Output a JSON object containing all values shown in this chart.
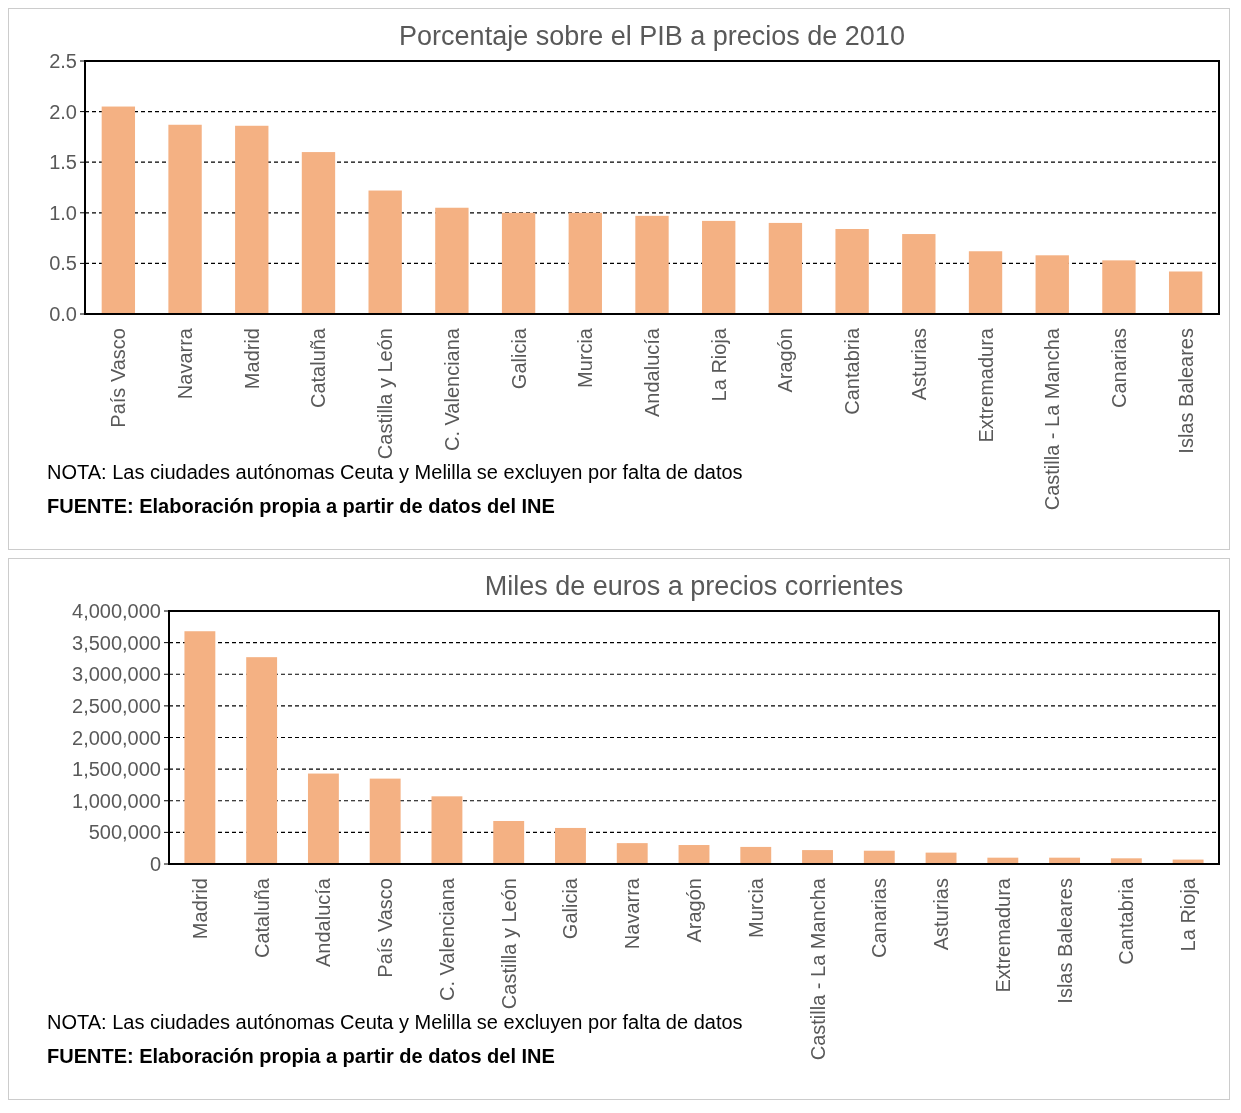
{
  "chart_data": [
    {
      "type": "bar",
      "title": "Porcentaje sobre el PIB a precios de 2010",
      "categories": [
        "País Vasco",
        "Navarra",
        "Madrid",
        "Cataluña",
        "Castilla y León",
        "C. Valenciana",
        "Galicia",
        "Murcia",
        "Andalucía",
        "La Rioja",
        "Aragón",
        "Cantabria",
        "Asturias",
        "Extremadura",
        "Castilla - La Mancha",
        "Canarias",
        "Islas Baleares"
      ],
      "values": [
        2.05,
        1.87,
        1.86,
        1.6,
        1.22,
        1.05,
        1.0,
        1.0,
        0.97,
        0.92,
        0.9,
        0.84,
        0.79,
        0.62,
        0.58,
        0.53,
        0.42
      ],
      "color": "#f4b183",
      "ylim": [
        0,
        2.5
      ],
      "yticks": [
        {
          "value": 0,
          "label": "0.0"
        },
        {
          "value": 0.5,
          "label": "0.5"
        },
        {
          "value": 1,
          "label": "1.0"
        },
        {
          "value": 1.5,
          "label": "1.5"
        },
        {
          "value": 2,
          "label": "2.0"
        },
        {
          "value": 2.5,
          "label": "2.5"
        }
      ],
      "grid": "y",
      "annotations": [
        "NOTA: Las ciudades autónomas  Ceuta y Melilla se excluyen por falta de datos",
        "FUENTE: Elaboración propia a partir de datos del INE"
      ]
    },
    {
      "type": "bar",
      "title": "Miles de euros a precios corrientes",
      "categories": [
        "Madrid",
        "Cataluña",
        "Andalucía",
        "País Vasco",
        "C. Valenciana",
        "Castilla y León",
        "Galicia",
        "Navarra",
        "Aragón",
        "Murcia",
        "Castilla - La Mancha",
        "Canarias",
        "Asturias",
        "Extremadura",
        "Islas Baleares",
        "Cantabria",
        "La Rioja"
      ],
      "values": [
        3680000,
        3270000,
        1430000,
        1350000,
        1070000,
        680000,
        570000,
        330000,
        300000,
        270000,
        220000,
        210000,
        180000,
        100000,
        100000,
        90000,
        70000
      ],
      "color": "#f4b183",
      "ylim": [
        0,
        4000000
      ],
      "yticks": [
        {
          "value": 0,
          "label": "0"
        },
        {
          "value": 500000,
          "label": "500,000"
        },
        {
          "value": 1000000,
          "label": "1,000,000"
        },
        {
          "value": 1500000,
          "label": "1,500,000"
        },
        {
          "value": 2000000,
          "label": "2,000,000"
        },
        {
          "value": 2500000,
          "label": "2,500,000"
        },
        {
          "value": 3000000,
          "label": "3,000,000"
        },
        {
          "value": 3500000,
          "label": "3,500,000"
        },
        {
          "value": 4000000,
          "label": "4,000,000"
        }
      ],
      "grid": "y",
      "annotations": [
        "NOTA: Las ciudades autónomas  Ceuta y Melilla se excluyen por falta de datos",
        "FUENTE: Elaboración propia a partir de datos del INE"
      ]
    }
  ]
}
